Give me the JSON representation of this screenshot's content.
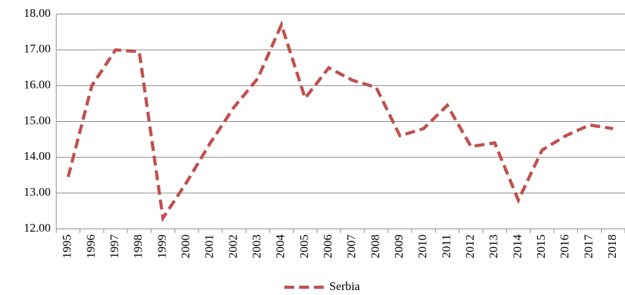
{
  "chart_data": {
    "type": "line",
    "categories": [
      "1995",
      "1996",
      "1997",
      "1998",
      "1999",
      "2000",
      "2001",
      "2002",
      "2003",
      "2004",
      "2005",
      "2006",
      "2007",
      "2008",
      "2009",
      "2010",
      "2011",
      "2012",
      "2013",
      "2014",
      "2015",
      "2016",
      "2017",
      "2018"
    ],
    "series": [
      {
        "name": "Serbia",
        "color": "#c0504d",
        "values": [
          13.45,
          16.0,
          17.0,
          16.95,
          12.3,
          13.3,
          14.4,
          15.4,
          16.2,
          17.7,
          15.65,
          16.5,
          16.15,
          15.95,
          14.6,
          14.8,
          15.45,
          14.3,
          14.4,
          12.8,
          14.2,
          14.6,
          14.9,
          14.8
        ]
      }
    ],
    "ylim": [
      12,
      18
    ],
    "yticks": [
      {
        "value": 12,
        "label": "12.00"
      },
      {
        "value": 13,
        "label": "13.00"
      },
      {
        "value": 14,
        "label": "14.00"
      },
      {
        "value": 15,
        "label": "15.00"
      },
      {
        "value": 16,
        "label": "16.00"
      },
      {
        "value": 17,
        "label": "17.00"
      },
      {
        "value": 18,
        "label": "18.00"
      }
    ],
    "grid": true,
    "legend": "bottom"
  }
}
